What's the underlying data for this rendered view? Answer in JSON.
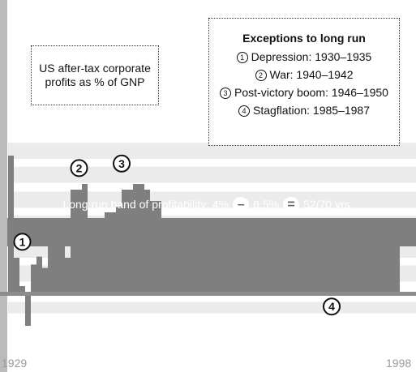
{
  "chart_data": {
    "type": "bar",
    "title": "",
    "xlabel": "",
    "ylabel": "",
    "x_range": [
      1929,
      1998
    ],
    "ylim": [
      -3.5,
      14
    ],
    "grid": true,
    "values": [
      12,
      3,
      0.5,
      -3,
      2.4,
      3.1,
      2.1,
      5,
      4.1,
      6.5,
      3,
      9,
      9,
      9.5,
      6.5,
      6.5,
      6.5,
      7,
      7,
      7.5,
      9,
      9,
      9.5,
      9.5,
      9,
      8,
      8,
      6.5,
      6.5,
      6.5,
      6.5,
      6.5,
      6.5,
      6.5,
      6.5,
      6.5,
      6.5,
      6.5,
      6.5,
      6.5,
      6.5,
      6.5,
      6.5,
      6.5,
      6.5,
      6.5,
      6.5,
      6.5,
      6.5,
      6.5,
      6.5,
      6.5,
      6.5,
      6.5,
      6.5,
      6.5,
      4,
      4,
      4,
      4,
      4,
      4,
      4,
      4,
      4,
      4,
      4,
      4,
      4
    ],
    "band": {
      "low": 4,
      "high": 6.5,
      "label_prefix": "Long run band of profitability: 4%",
      "label_high": "6.5%",
      "label_suffix": "52/70 yrs."
    },
    "annotations": [
      {
        "marker": "1",
        "year": 1931.5,
        "value": 4.4
      },
      {
        "marker": "2",
        "year": 1941.5,
        "value": 10.9
      },
      {
        "marker": "3",
        "year": 1949,
        "value": 11.3
      },
      {
        "marker": "4",
        "year": 1986,
        "value": -1.3
      }
    ],
    "x_start_label": "1929",
    "x_end_label": "1998"
  },
  "profits_box": {
    "line1": "US after-tax corporate",
    "line2": "profits as % of GNP"
  },
  "exceptions": {
    "title": "Exceptions to long run",
    "items": [
      {
        "num": "1",
        "text": "Depression: 1930–1935"
      },
      {
        "num": "2",
        "text": "War: 1940–1942"
      },
      {
        "num": "3",
        "text": "Post-victory boom: 1946–1950"
      },
      {
        "num": "4",
        "text": "Stagflation: 1985–1987"
      }
    ]
  },
  "band_ops": {
    "minus": "–",
    "equals": "="
  },
  "colors": {
    "bar": "#7f7f7f",
    "band": "#7f7f7f",
    "grid_band": "#ebebeb",
    "baseline": "#8c8c8c",
    "axis": "#bbbbbb",
    "year_label": "#999999"
  }
}
